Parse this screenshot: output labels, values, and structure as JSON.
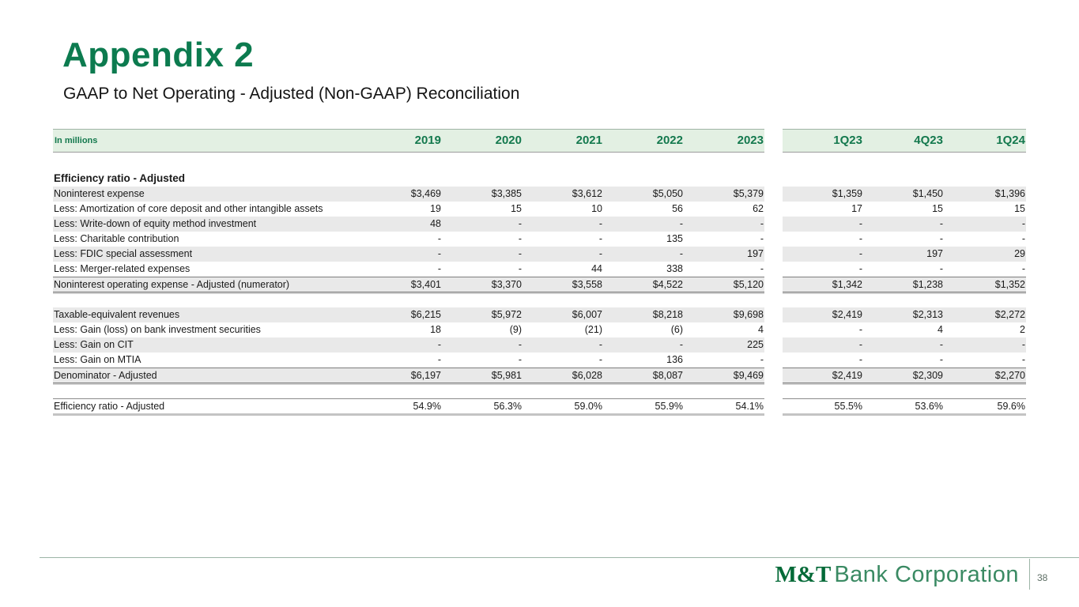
{
  "slide": {
    "title": "Appendix 2",
    "subtitle": "GAAP to Net Operating - Adjusted (Non-GAAP) Reconciliation",
    "page_number": "38",
    "logo_bold": "M&T",
    "logo_rest": "Bank Corporation"
  },
  "colors": {
    "brand_green": "#0c7b4f",
    "header_band_bg": "#e3f0e3",
    "header_text_green": "#14794e",
    "row_shade_gray": "#e9e9e9",
    "total_border_gray": "#7d7d7d",
    "footer_line_green": "#9cb4a6"
  },
  "table": {
    "unit_label": "In millions",
    "columns": [
      "2019",
      "2020",
      "2021",
      "2022",
      "2023",
      "1Q23",
      "4Q23",
      "1Q24"
    ],
    "gap_after_column_index": 5,
    "sections": [
      {
        "header": "Efficiency ratio - Adjusted",
        "rows": [
          {
            "label": "Noninterest expense",
            "values": [
              "$3,469",
              "$3,385",
              "$3,612",
              "$5,050",
              "$5,379",
              "$1,359",
              "$1,450",
              "$1,396"
            ],
            "shaded": true,
            "total": false,
            "ratio": false
          },
          {
            "label": "Less: Amortization of core deposit and other intangible assets",
            "values": [
              "19",
              "15",
              "10",
              "56",
              "62",
              "17",
              "15",
              "15"
            ],
            "shaded": false,
            "total": false,
            "ratio": false
          },
          {
            "label": "Less: Write-down of equity method investment",
            "values": [
              "48",
              "-",
              "-",
              "-",
              "-",
              "-",
              "-",
              "-"
            ],
            "shaded": true,
            "total": false,
            "ratio": false
          },
          {
            "label": "Less: Charitable contribution",
            "values": [
              "-",
              "-",
              "-",
              "135",
              "-",
              "-",
              "-",
              "-"
            ],
            "shaded": false,
            "total": false,
            "ratio": false
          },
          {
            "label": "Less: FDIC special assessment",
            "values": [
              "-",
              "-",
              "-",
              "-",
              "197",
              "-",
              "197",
              "29"
            ],
            "shaded": true,
            "total": false,
            "ratio": false
          },
          {
            "label": "Less: Merger-related expenses",
            "values": [
              "-",
              "-",
              "44",
              "338",
              "-",
              "-",
              "-",
              "-"
            ],
            "shaded": false,
            "total": false,
            "ratio": false
          },
          {
            "label": "Noninterest operating expense - Adjusted (numerator)",
            "values": [
              "$3,401",
              "$3,370",
              "$3,558",
              "$4,522",
              "$5,120",
              "$1,342",
              "$1,238",
              "$1,352"
            ],
            "shaded": true,
            "total": true,
            "ratio": false
          }
        ]
      },
      {
        "header": null,
        "rows": [
          {
            "label": "Taxable-equivalent revenues",
            "values": [
              "$6,215",
              "$5,972",
              "$6,007",
              "$8,218",
              "$9,698",
              "$2,419",
              "$2,313",
              "$2,272"
            ],
            "shaded": true,
            "total": false,
            "ratio": false
          },
          {
            "label": "Less: Gain (loss) on bank investment securities",
            "values": [
              "18",
              "(9)",
              "(21)",
              "(6)",
              "4",
              "-",
              "4",
              "2"
            ],
            "shaded": false,
            "total": false,
            "ratio": false
          },
          {
            "label": "Less: Gain on CIT",
            "values": [
              "-",
              "-",
              "-",
              "-",
              "225",
              "-",
              "-",
              "-"
            ],
            "shaded": true,
            "total": false,
            "ratio": false
          },
          {
            "label": "Less: Gain on MTIA",
            "values": [
              "-",
              "-",
              "-",
              "136",
              "-",
              "-",
              "-",
              "-"
            ],
            "shaded": false,
            "total": false,
            "ratio": false
          },
          {
            "label": "Denominator - Adjusted",
            "values": [
              "$6,197",
              "$5,981",
              "$6,028",
              "$8,087",
              "$9,469",
              "$2,419",
              "$2,309",
              "$2,270"
            ],
            "shaded": true,
            "total": true,
            "ratio": false
          }
        ]
      },
      {
        "header": null,
        "rows": [
          {
            "label": "Efficiency ratio - Adjusted",
            "values": [
              "54.9%",
              "56.3%",
              "59.0%",
              "55.9%",
              "54.1%",
              "55.5%",
              "53.6%",
              "59.6%"
            ],
            "shaded": false,
            "total": false,
            "ratio": true
          }
        ]
      }
    ]
  }
}
